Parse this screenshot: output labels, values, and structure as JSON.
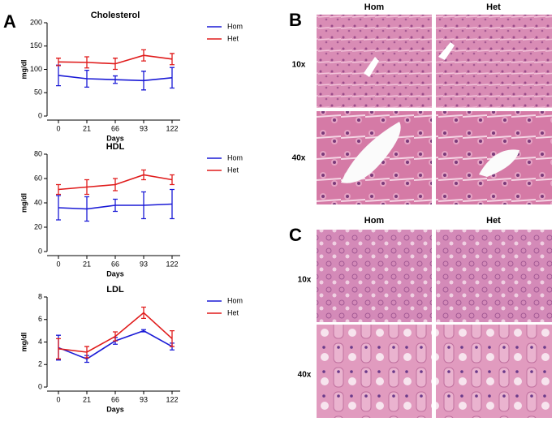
{
  "chart_data": [
    {
      "type": "line",
      "title": "Cholesterol",
      "y_label": "mg/dl",
      "x_label": "Days",
      "categories": [
        "0",
        "21",
        "66",
        "93",
        "122"
      ],
      "series": [
        {
          "name": "Hom",
          "color": "#1a1ad6",
          "values": [
            87,
            80,
            78,
            76,
            82
          ],
          "errors": [
            22,
            18,
            8,
            20,
            22
          ]
        },
        {
          "name": "Het",
          "color": "#e01b1b",
          "values": [
            116,
            115,
            112,
            130,
            122
          ],
          "errors": [
            8,
            12,
            12,
            12,
            12
          ]
        }
      ],
      "ylim": [
        0,
        200
      ],
      "yticks": [
        0,
        50,
        100,
        150,
        200
      ]
    },
    {
      "type": "line",
      "title": "HDL",
      "y_label": "mg/dl",
      "x_label": "Days",
      "categories": [
        "0",
        "21",
        "66",
        "93",
        "122"
      ],
      "series": [
        {
          "name": "Hom",
          "color": "#1a1ad6",
          "values": [
            36,
            35,
            38,
            38,
            39
          ],
          "errors": [
            10,
            10,
            5,
            11,
            12
          ]
        },
        {
          "name": "Het",
          "color": "#e01b1b",
          "values": [
            51,
            53,
            55,
            63,
            59
          ],
          "errors": [
            4,
            6,
            5,
            4,
            4
          ]
        }
      ],
      "ylim": [
        0,
        80
      ],
      "yticks": [
        0,
        20,
        40,
        60,
        80
      ]
    },
    {
      "type": "line",
      "title": "LDL",
      "y_label": "mg/dl",
      "x_label": "Days",
      "categories": [
        "0",
        "21",
        "66",
        "93",
        "122"
      ],
      "series": [
        {
          "name": "Hom",
          "color": "#1a1ad6",
          "values": [
            3.5,
            2.5,
            4.1,
            5.0,
            3.6
          ],
          "errors": [
            1.1,
            0.3,
            0.3,
            0.1,
            0.3
          ]
        },
        {
          "name": "Het",
          "color": "#e01b1b",
          "values": [
            3.4,
            3.1,
            4.5,
            6.6,
            4.3
          ],
          "errors": [
            0.9,
            0.5,
            0.4,
            0.5,
            0.7
          ]
        }
      ],
      "ylim": [
        0,
        8
      ],
      "yticks": [
        0,
        2,
        4,
        6,
        8
      ]
    }
  ],
  "panel_labels": [
    "A",
    "B",
    "C"
  ],
  "image_panels": [
    {
      "columns": [
        "Hom",
        "Het"
      ],
      "rows": [
        "10x",
        "40x"
      ]
    },
    {
      "columns": [
        "Hom",
        "Het"
      ],
      "rows": [
        "10x",
        "40x"
      ]
    }
  ]
}
